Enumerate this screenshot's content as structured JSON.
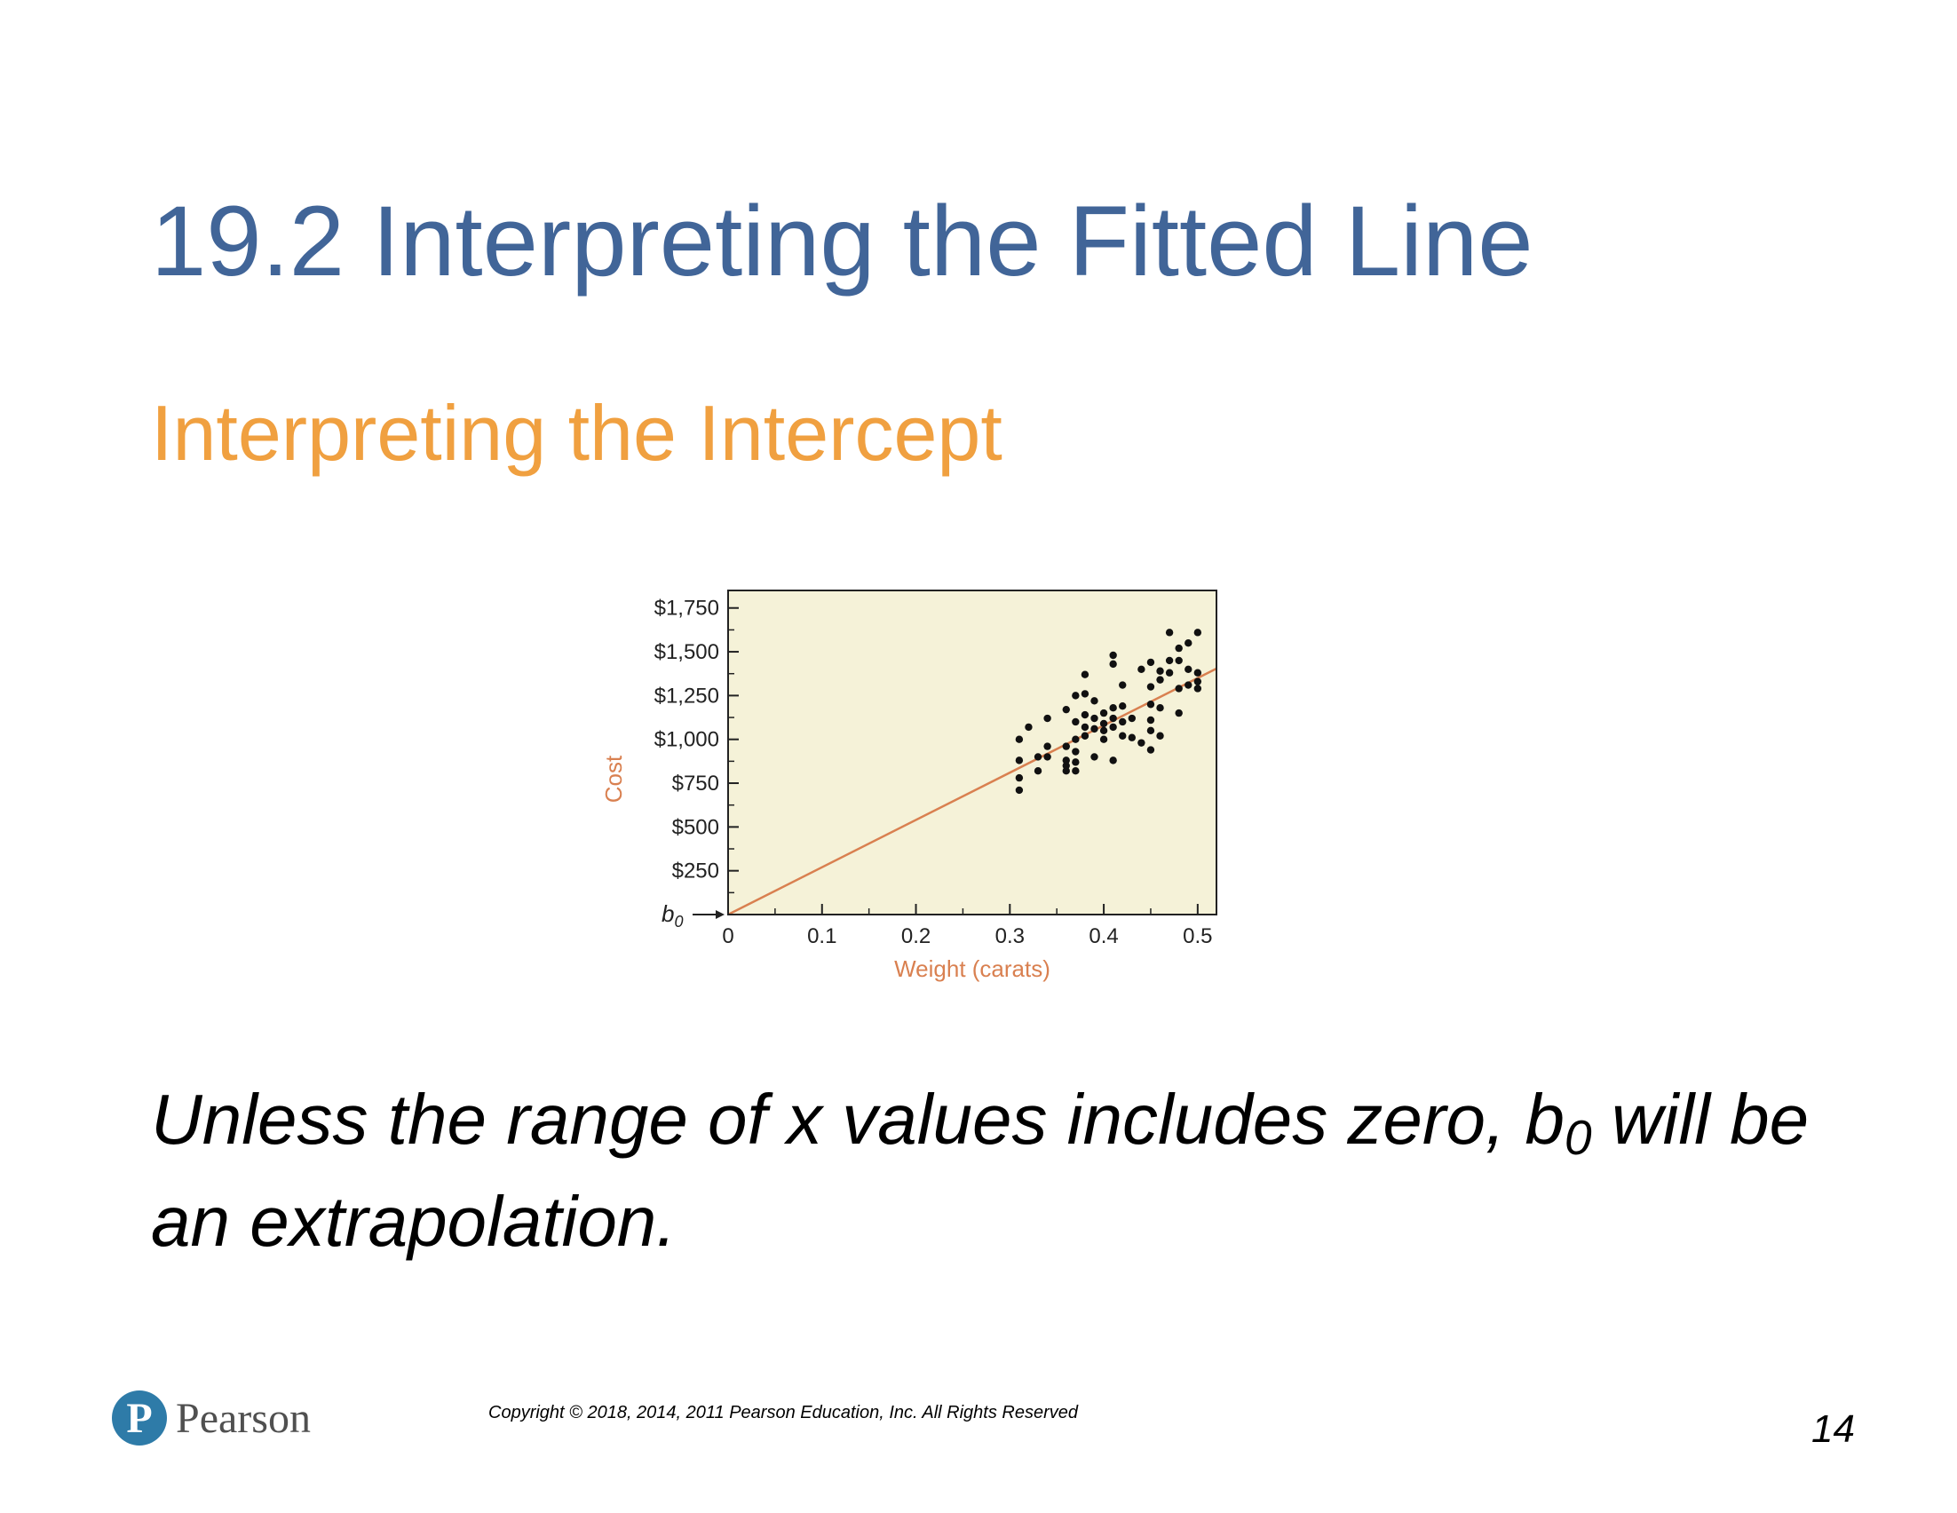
{
  "slide": {
    "title": "19.2 Interpreting the Fitted Line",
    "subtitle": "Interpreting the Intercept",
    "body_part1": "Unless the range of x values includes zero, b",
    "body_sub": "0",
    "body_part2": " will be an extrapolation.",
    "footer": {
      "logo_letter": "P",
      "logo_text": "Pearson",
      "copyright": "Copyright © 2018, 2014, 2011 Pearson Education, Inc. All Rights Reserved",
      "page_number": "14"
    }
  },
  "colors": {
    "title": "#416598",
    "subtitle": "#F0A040",
    "plot_background": "#F5F2D8",
    "fit_line": "#D98050",
    "points": "#111111",
    "axis_label": "#D98050"
  },
  "chart_data": {
    "type": "scatter",
    "xlabel": "Weight (carats)",
    "ylabel": "Cost",
    "xlim": [
      0,
      0.52
    ],
    "ylim": [
      0,
      1850
    ],
    "x_ticks": [
      0,
      0.1,
      0.2,
      0.3,
      0.4,
      0.5
    ],
    "x_tick_labels": [
      "0",
      "0.1",
      "0.2",
      "0.3",
      "0.4",
      "0.5"
    ],
    "y_ticks": [
      250,
      500,
      750,
      1000,
      1250,
      1500,
      1750
    ],
    "y_tick_labels": [
      "$250",
      "$500",
      "$750",
      "$1,000",
      "$1,250",
      "$1,500",
      "$1,750"
    ],
    "intercept_label": "b0",
    "fit_line": {
      "intercept": 0,
      "slope": 2700
    },
    "grid": false,
    "legend": "none",
    "points": [
      [
        0.31,
        710
      ],
      [
        0.31,
        780
      ],
      [
        0.31,
        880
      ],
      [
        0.31,
        1000
      ],
      [
        0.32,
        1070
      ],
      [
        0.33,
        820
      ],
      [
        0.33,
        900
      ],
      [
        0.34,
        960
      ],
      [
        0.34,
        1120
      ],
      [
        0.34,
        900
      ],
      [
        0.36,
        820
      ],
      [
        0.36,
        850
      ],
      [
        0.36,
        880
      ],
      [
        0.36,
        960
      ],
      [
        0.36,
        1170
      ],
      [
        0.37,
        820
      ],
      [
        0.37,
        870
      ],
      [
        0.37,
        930
      ],
      [
        0.37,
        1000
      ],
      [
        0.37,
        1100
      ],
      [
        0.37,
        1250
      ],
      [
        0.38,
        1020
      ],
      [
        0.38,
        1070
      ],
      [
        0.38,
        1140
      ],
      [
        0.38,
        1260
      ],
      [
        0.38,
        1370
      ],
      [
        0.39,
        900
      ],
      [
        0.39,
        1060
      ],
      [
        0.39,
        1120
      ],
      [
        0.39,
        1220
      ],
      [
        0.4,
        1000
      ],
      [
        0.4,
        1050
      ],
      [
        0.4,
        1090
      ],
      [
        0.4,
        1150
      ],
      [
        0.41,
        880
      ],
      [
        0.41,
        1070
      ],
      [
        0.41,
        1120
      ],
      [
        0.41,
        1180
      ],
      [
        0.41,
        1430
      ],
      [
        0.41,
        1480
      ],
      [
        0.42,
        1020
      ],
      [
        0.42,
        1100
      ],
      [
        0.42,
        1190
      ],
      [
        0.42,
        1310
      ],
      [
        0.43,
        1010
      ],
      [
        0.43,
        1120
      ],
      [
        0.44,
        980
      ],
      [
        0.44,
        1400
      ],
      [
        0.45,
        940
      ],
      [
        0.45,
        1050
      ],
      [
        0.45,
        1110
      ],
      [
        0.45,
        1200
      ],
      [
        0.45,
        1300
      ],
      [
        0.45,
        1440
      ],
      [
        0.46,
        1020
      ],
      [
        0.46,
        1180
      ],
      [
        0.46,
        1340
      ],
      [
        0.46,
        1390
      ],
      [
        0.47,
        1380
      ],
      [
        0.47,
        1450
      ],
      [
        0.47,
        1610
      ],
      [
        0.48,
        1150
      ],
      [
        0.48,
        1290
      ],
      [
        0.48,
        1450
      ],
      [
        0.48,
        1520
      ],
      [
        0.49,
        1310
      ],
      [
        0.49,
        1400
      ],
      [
        0.49,
        1550
      ],
      [
        0.5,
        1290
      ],
      [
        0.5,
        1330
      ],
      [
        0.5,
        1380
      ],
      [
        0.5,
        1610
      ]
    ]
  }
}
